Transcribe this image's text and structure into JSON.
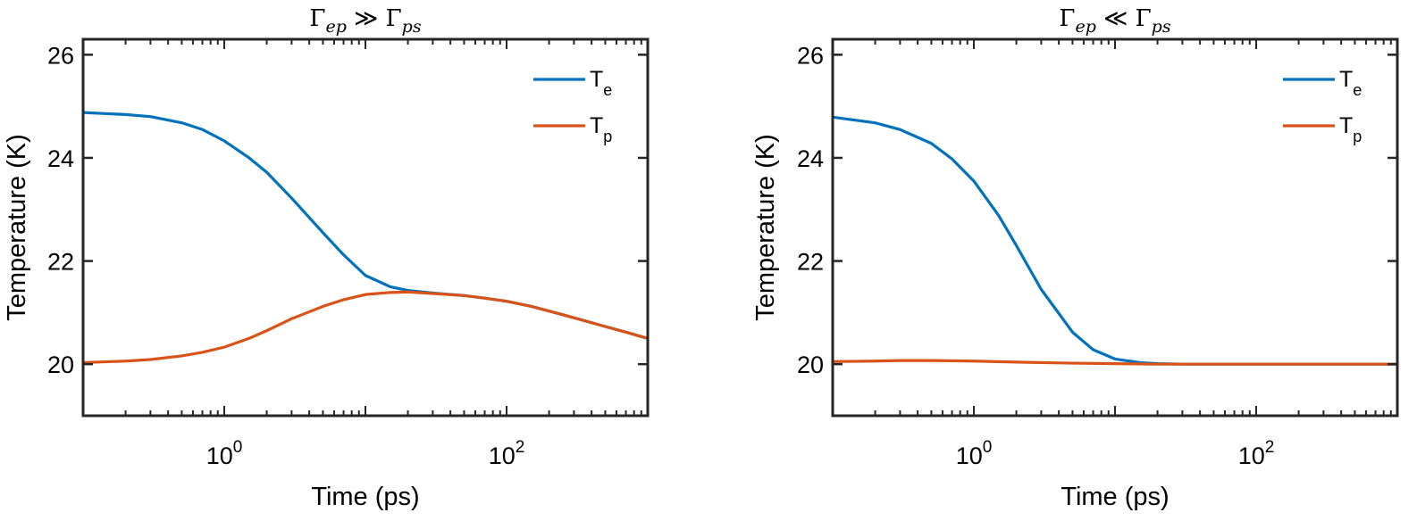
{
  "chart_data": [
    {
      "type": "line",
      "title": "Γep ≫ Γps",
      "title_parts": {
        "symbol": "Γ",
        "sub1": "ep",
        "relation": "≫",
        "sub2": "ps"
      },
      "xlabel": "Time (ps)",
      "ylabel": "Temperature (K)",
      "xscale": "log",
      "xlim": [
        0.1,
        1000
      ],
      "ylim": [
        19,
        26.3
      ],
      "xticks": [
        1,
        100
      ],
      "xtick_labels": [
        {
          "base": "10",
          "exp": "0"
        },
        {
          "base": "10",
          "exp": "2"
        }
      ],
      "yticks": [
        20,
        22,
        24,
        26
      ],
      "ytick_labels": [
        "20",
        "22",
        "24",
        "26"
      ],
      "grid": false,
      "legend_position": "top-right",
      "series": [
        {
          "name": "Te",
          "legend": {
            "base": "T",
            "sub": "e"
          },
          "color": "#0072BD",
          "x": [
            0.1,
            0.2,
            0.3,
            0.5,
            0.7,
            1,
            1.5,
            2,
            3,
            5,
            7,
            10,
            15,
            20,
            30,
            50,
            70,
            100,
            150,
            200,
            300,
            500,
            700,
            1000
          ],
          "y": [
            24.88,
            24.84,
            24.8,
            24.68,
            24.55,
            24.33,
            24.0,
            23.72,
            23.22,
            22.55,
            22.12,
            21.72,
            21.5,
            21.43,
            21.38,
            21.33,
            21.28,
            21.22,
            21.12,
            21.03,
            20.9,
            20.73,
            20.62,
            20.5
          ]
        },
        {
          "name": "Tp",
          "legend": {
            "base": "T",
            "sub": "p"
          },
          "color": "#D95319",
          "x": [
            0.1,
            0.2,
            0.3,
            0.5,
            0.7,
            1,
            1.5,
            2,
            3,
            5,
            7,
            10,
            15,
            20,
            30,
            50,
            70,
            100,
            150,
            200,
            300,
            500,
            700,
            1000
          ],
          "y": [
            20.03,
            20.06,
            20.09,
            20.16,
            20.23,
            20.33,
            20.5,
            20.65,
            20.88,
            21.12,
            21.25,
            21.35,
            21.39,
            21.4,
            21.37,
            21.33,
            21.28,
            21.22,
            21.12,
            21.03,
            20.9,
            20.73,
            20.62,
            20.5
          ]
        }
      ]
    },
    {
      "type": "line",
      "title": "Γep ≪ Γps",
      "title_parts": {
        "symbol": "Γ",
        "sub1": "ep",
        "relation": "≪",
        "sub2": "ps"
      },
      "xlabel": "Time (ps)",
      "ylabel": "Temperature (K)",
      "xscale": "log",
      "xlim": [
        0.1,
        1000
      ],
      "ylim": [
        19,
        26.3
      ],
      "xticks": [
        1,
        100
      ],
      "xtick_labels": [
        {
          "base": "10",
          "exp": "0"
        },
        {
          "base": "10",
          "exp": "2"
        }
      ],
      "yticks": [
        20,
        22,
        24,
        26
      ],
      "ytick_labels": [
        "20",
        "22",
        "24",
        "26"
      ],
      "grid": false,
      "legend_position": "top-right",
      "series": [
        {
          "name": "Te",
          "legend": {
            "base": "T",
            "sub": "e"
          },
          "color": "#0072BD",
          "x": [
            0.1,
            0.2,
            0.3,
            0.5,
            0.7,
            1,
            1.5,
            2,
            3,
            5,
            7,
            10,
            15,
            20,
            30,
            50,
            100,
            200,
            500,
            1000
          ],
          "y": [
            24.79,
            24.68,
            24.55,
            24.28,
            23.98,
            23.55,
            22.88,
            22.3,
            21.45,
            20.62,
            20.28,
            20.1,
            20.03,
            20.01,
            20.0,
            20.0,
            20.0,
            20.0,
            20.0,
            20.0
          ]
        },
        {
          "name": "Tp",
          "legend": {
            "base": "T",
            "sub": "p"
          },
          "color": "#D95319",
          "x": [
            0.1,
            0.2,
            0.3,
            0.5,
            1,
            2,
            3,
            5,
            10,
            20,
            50,
            100,
            200,
            500,
            1000
          ],
          "y": [
            20.05,
            20.06,
            20.07,
            20.07,
            20.06,
            20.04,
            20.03,
            20.02,
            20.01,
            20.0,
            20.0,
            20.0,
            20.0,
            20.0,
            20.0
          ]
        }
      ]
    }
  ]
}
